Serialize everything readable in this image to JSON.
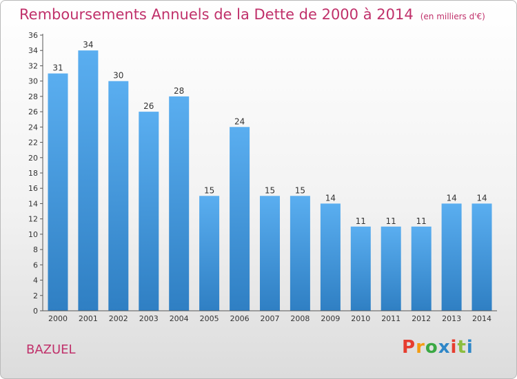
{
  "chart_data": {
    "type": "bar",
    "title": "Remboursements Annuels de la Dette de 2000 à 2014",
    "subtitle": "(en milliers d'€)",
    "categories": [
      "2000",
      "2001",
      "2002",
      "2003",
      "2004",
      "2005",
      "2006",
      "2007",
      "2008",
      "2009",
      "2010",
      "2011",
      "2012",
      "2013",
      "2014"
    ],
    "values": [
      31,
      34,
      30,
      26,
      28,
      15,
      24,
      15,
      15,
      14,
      11,
      11,
      11,
      14,
      14
    ],
    "ylim": [
      0,
      36
    ],
    "yticks": [
      0,
      2,
      4,
      6,
      8,
      10,
      12,
      14,
      16,
      18,
      20,
      22,
      24,
      26,
      28,
      30,
      32,
      34,
      36
    ],
    "grid": false,
    "bar_color": "#4a9ee0",
    "data_labels": true
  },
  "footer": {
    "commune": "BAZUEL",
    "brand": "Proxiti",
    "brand_colors": [
      "#e63d2f",
      "#f39c12",
      "#3aa843",
      "#2f87c8",
      "#e63d2f",
      "#8cbd3f",
      "#2f87c8"
    ]
  },
  "colors": {
    "title": "#c0306a",
    "axis": "#333333"
  }
}
